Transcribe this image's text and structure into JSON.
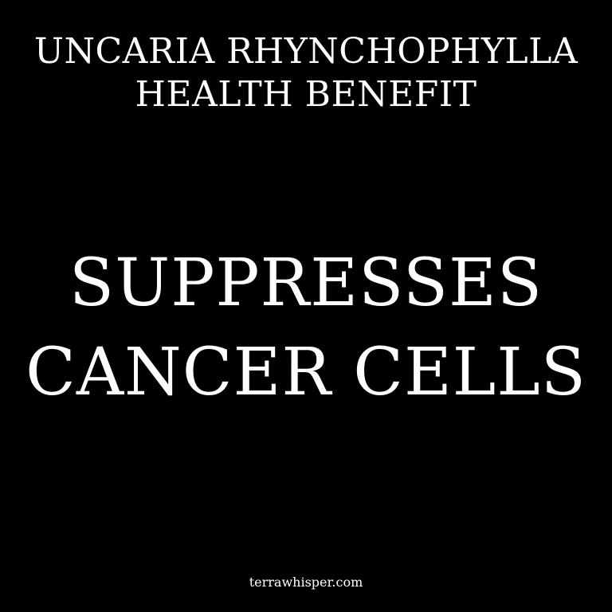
{
  "colors": {
    "background": "#000000",
    "text": "#ffffff"
  },
  "header": {
    "line1": "UNCARIA RHYNCHOPHYLLA",
    "line2": "HEALTH BENEFIT"
  },
  "headline": {
    "line1": "SUPPRESSES",
    "line2": "CANCER CELLS"
  },
  "footer": {
    "site": "terrawhisper.com"
  }
}
